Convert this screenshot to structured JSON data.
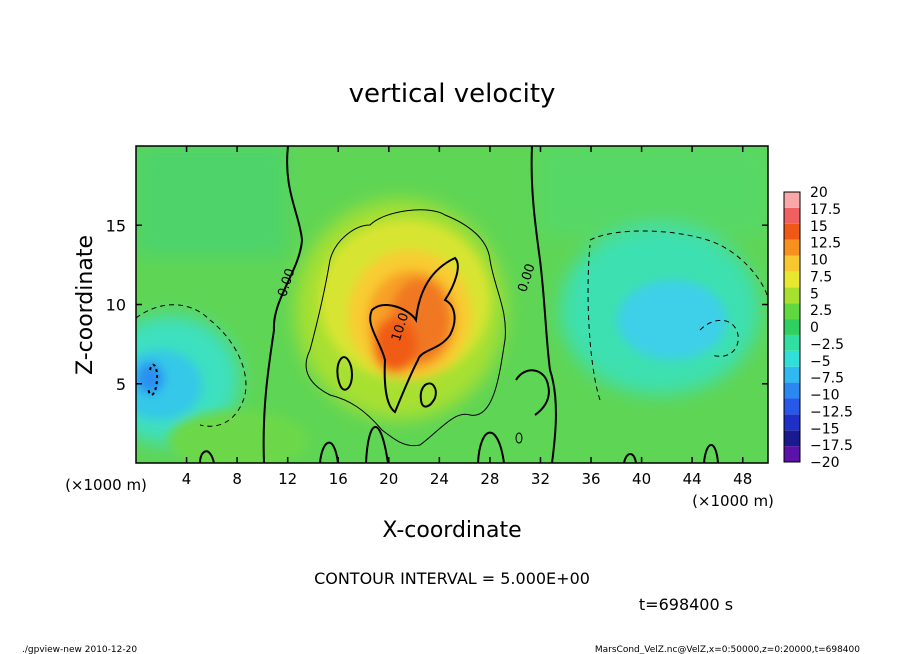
{
  "chart_data": {
    "type": "heatmap",
    "title": "vertical velocity",
    "xlabel": "X-coordinate",
    "ylabel": "Z-coordinate",
    "x_unit_label": "(×1000 m)",
    "y_unit_label": "(×1000 m)",
    "xlim": [
      0,
      50
    ],
    "ylim": [
      0,
      20
    ],
    "x_ticks": [
      4,
      8,
      12,
      16,
      20,
      24,
      28,
      32,
      36,
      40,
      44,
      48
    ],
    "y_ticks": [
      5,
      10,
      15
    ],
    "colorbar": {
      "levels": [
        -20,
        -17.5,
        -15,
        -12.5,
        -10,
        -7.5,
        -5,
        -2.5,
        0,
        2.5,
        5,
        7.5,
        10,
        12.5,
        15,
        17.5,
        20
      ],
      "labels": [
        "20",
        "17.5",
        "15",
        "12.5",
        "10",
        "7.5",
        "5",
        "2.5",
        "0",
        "−2.5",
        "−5",
        "−7.5",
        "−10",
        "−12.5",
        "−15",
        "−17.5",
        "−20"
      ],
      "colors": [
        "#5a12a8",
        "#1a1a90",
        "#1e30c8",
        "#2858e8",
        "#2a88f0",
        "#30b8f0",
        "#30e0d8",
        "#30e0a0",
        "#30d060",
        "#60d840",
        "#a8e030",
        "#e8e830",
        "#f8c830",
        "#f89020",
        "#f05818",
        "#f06060",
        "#f8a8a8"
      ]
    },
    "field_features": [
      {
        "kind": "updraft",
        "center_x": 21,
        "center_z": 9,
        "peak": 12.5
      },
      {
        "kind": "downdraft",
        "center_x": 43,
        "center_z": 10,
        "min": -7.5
      },
      {
        "kind": "downdraft",
        "center_x": 2,
        "center_z": 5.5,
        "min": -10
      }
    ],
    "contour_labels": [
      {
        "text": "0.00",
        "x": 12.2,
        "z": 11.3
      },
      {
        "text": "10.0",
        "x": 21.2,
        "z": 8.5
      },
      {
        "text": "0.00",
        "x": 31.2,
        "z": 11.6
      }
    ],
    "contour_interval_text": "CONTOUR INTERVAL = 5.000E+00",
    "time_text": "t=698400 s"
  },
  "footer": {
    "left": "./gpview-new   2010-12-20",
    "right": "MarsCond_VelZ.nc@VelZ,x=0:50000,z=0:20000,t=698400"
  }
}
